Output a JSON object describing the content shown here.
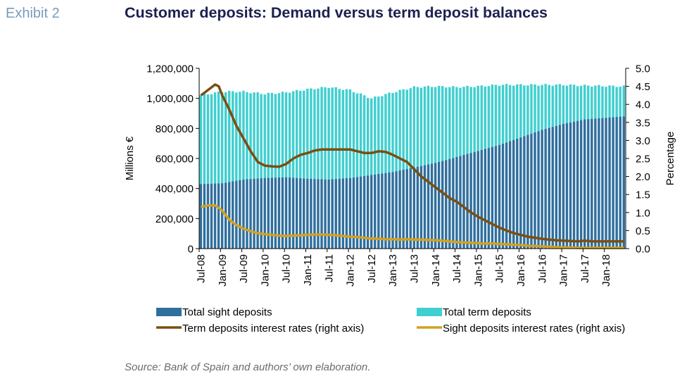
{
  "header": {
    "exhibit": "Exhibit 2",
    "title": "Customer deposits: Demand versus term deposit balances"
  },
  "footer": {
    "source": "Source: Bank of Spain and authors’ own elaboration."
  },
  "colors": {
    "sight_deposits": "#2f6f9e",
    "term_deposits": "#40cfd0",
    "term_rate": "#7a4e12",
    "sight_rate": "#d4a11f"
  },
  "chart_data": {
    "type": "bar",
    "stacked": true,
    "x_start": "Jul-08",
    "x_end": "Jun-18",
    "frequency": "monthly",
    "x_tick_labels": [
      "Jul-08",
      "Jan-09",
      "Jul-09",
      "Jan-10",
      "Jul-10",
      "Jan-11",
      "Jul-11",
      "Jan-12",
      "Jul-12",
      "Jan-13",
      "Jul-13",
      "Jan-14",
      "Jul-14",
      "Jan-15",
      "Jul-15",
      "Jan-16",
      "Jul-16",
      "Jan-17",
      "Jul-17",
      "Jan-18"
    ],
    "ylabel_left": "Millions €",
    "ylabel_right": "Percentage",
    "ylim_left": [
      0,
      1200000
    ],
    "ylim_right": [
      0,
      5.0
    ],
    "y_ticks_left": [
      "0",
      "200,000",
      "400,000",
      "600,000",
      "800,000",
      "1,000,000",
      "1,200,000"
    ],
    "y_ticks_right": [
      "0.0",
      "0.5",
      "1.0",
      "1.5",
      "2.0",
      "2.5",
      "3.0",
      "3.5",
      "4.0",
      "4.5",
      "5.0"
    ],
    "grid": false,
    "legend_position": "bottom",
    "series": [
      {
        "name": "Total sight deposits",
        "kind": "bar",
        "axis": "left",
        "anchors": [
          [
            0,
            430000
          ],
          [
            6,
            435000
          ],
          [
            12,
            460000
          ],
          [
            18,
            470000
          ],
          [
            24,
            475000
          ],
          [
            30,
            465000
          ],
          [
            36,
            460000
          ],
          [
            42,
            470000
          ],
          [
            48,
            490000
          ],
          [
            54,
            510000
          ],
          [
            60,
            540000
          ],
          [
            66,
            570000
          ],
          [
            72,
            610000
          ],
          [
            78,
            650000
          ],
          [
            84,
            690000
          ],
          [
            90,
            740000
          ],
          [
            96,
            790000
          ],
          [
            102,
            830000
          ],
          [
            108,
            860000
          ],
          [
            119,
            880000
          ]
        ]
      },
      {
        "name": "Total term deposits",
        "kind": "bar_total",
        "axis": "left",
        "anchors": [
          [
            0,
            1020000
          ],
          [
            6,
            1045000
          ],
          [
            12,
            1045000
          ],
          [
            18,
            1030000
          ],
          [
            24,
            1040000
          ],
          [
            30,
            1060000
          ],
          [
            36,
            1075000
          ],
          [
            42,
            1055000
          ],
          [
            48,
            1000000
          ],
          [
            54,
            1040000
          ],
          [
            60,
            1075000
          ],
          [
            66,
            1080000
          ],
          [
            72,
            1075000
          ],
          [
            78,
            1080000
          ],
          [
            84,
            1090000
          ],
          [
            90,
            1090000
          ],
          [
            96,
            1090000
          ],
          [
            102,
            1090000
          ],
          [
            108,
            1085000
          ],
          [
            119,
            1080000
          ]
        ]
      },
      {
        "name": "Term deposits interest rates (right axis)",
        "kind": "line",
        "axis": "right",
        "anchors": [
          [
            0,
            4.25
          ],
          [
            2,
            4.4
          ],
          [
            4,
            4.55
          ],
          [
            5,
            4.5
          ],
          [
            6,
            4.25
          ],
          [
            8,
            3.85
          ],
          [
            10,
            3.4
          ],
          [
            12,
            3.05
          ],
          [
            14,
            2.7
          ],
          [
            16,
            2.4
          ],
          [
            18,
            2.3
          ],
          [
            20,
            2.28
          ],
          [
            22,
            2.27
          ],
          [
            24,
            2.35
          ],
          [
            26,
            2.5
          ],
          [
            28,
            2.6
          ],
          [
            30,
            2.65
          ],
          [
            32,
            2.72
          ],
          [
            34,
            2.75
          ],
          [
            36,
            2.75
          ],
          [
            38,
            2.75
          ],
          [
            40,
            2.75
          ],
          [
            42,
            2.75
          ],
          [
            44,
            2.7
          ],
          [
            46,
            2.65
          ],
          [
            48,
            2.65
          ],
          [
            50,
            2.7
          ],
          [
            52,
            2.68
          ],
          [
            54,
            2.6
          ],
          [
            56,
            2.5
          ],
          [
            58,
            2.4
          ],
          [
            60,
            2.2
          ],
          [
            62,
            2.0
          ],
          [
            64,
            1.85
          ],
          [
            66,
            1.7
          ],
          [
            68,
            1.55
          ],
          [
            70,
            1.4
          ],
          [
            72,
            1.3
          ],
          [
            74,
            1.15
          ],
          [
            76,
            1.0
          ],
          [
            78,
            0.88
          ],
          [
            80,
            0.78
          ],
          [
            82,
            0.68
          ],
          [
            84,
            0.58
          ],
          [
            86,
            0.5
          ],
          [
            88,
            0.43
          ],
          [
            90,
            0.38
          ],
          [
            92,
            0.33
          ],
          [
            94,
            0.3
          ],
          [
            96,
            0.27
          ],
          [
            98,
            0.25
          ],
          [
            100,
            0.23
          ],
          [
            102,
            0.22
          ],
          [
            104,
            0.21
          ],
          [
            106,
            0.2
          ],
          [
            108,
            0.22
          ],
          [
            110,
            0.2
          ],
          [
            114,
            0.2
          ],
          [
            119,
            0.2
          ]
        ]
      },
      {
        "name": "Sight deposits interest rates (right axis)",
        "kind": "line",
        "axis": "right",
        "anchors": [
          [
            0,
            1.15
          ],
          [
            2,
            1.2
          ],
          [
            4,
            1.2
          ],
          [
            6,
            1.05
          ],
          [
            8,
            0.8
          ],
          [
            10,
            0.65
          ],
          [
            12,
            0.55
          ],
          [
            14,
            0.48
          ],
          [
            16,
            0.43
          ],
          [
            18,
            0.4
          ],
          [
            20,
            0.38
          ],
          [
            22,
            0.36
          ],
          [
            24,
            0.35
          ],
          [
            26,
            0.36
          ],
          [
            28,
            0.37
          ],
          [
            30,
            0.38
          ],
          [
            32,
            0.39
          ],
          [
            34,
            0.39
          ],
          [
            36,
            0.38
          ],
          [
            38,
            0.37
          ],
          [
            40,
            0.35
          ],
          [
            42,
            0.33
          ],
          [
            44,
            0.32
          ],
          [
            46,
            0.3
          ],
          [
            48,
            0.28
          ],
          [
            50,
            0.27
          ],
          [
            52,
            0.26
          ],
          [
            54,
            0.26
          ],
          [
            56,
            0.25
          ],
          [
            58,
            0.26
          ],
          [
            60,
            0.25
          ],
          [
            62,
            0.25
          ],
          [
            64,
            0.24
          ],
          [
            66,
            0.23
          ],
          [
            68,
            0.22
          ],
          [
            70,
            0.2
          ],
          [
            72,
            0.18
          ],
          [
            74,
            0.17
          ],
          [
            76,
            0.16
          ],
          [
            78,
            0.15
          ],
          [
            80,
            0.14
          ],
          [
            82,
            0.14
          ],
          [
            84,
            0.13
          ],
          [
            86,
            0.12
          ],
          [
            88,
            0.11
          ],
          [
            90,
            0.1
          ],
          [
            92,
            0.08
          ],
          [
            94,
            0.07
          ],
          [
            96,
            0.06
          ],
          [
            98,
            0.05
          ],
          [
            100,
            0.04
          ],
          [
            102,
            0.03
          ],
          [
            104,
            0.03
          ],
          [
            106,
            0.02
          ],
          [
            108,
            0.02
          ],
          [
            114,
            0.02
          ],
          [
            119,
            0.02
          ]
        ]
      }
    ]
  }
}
